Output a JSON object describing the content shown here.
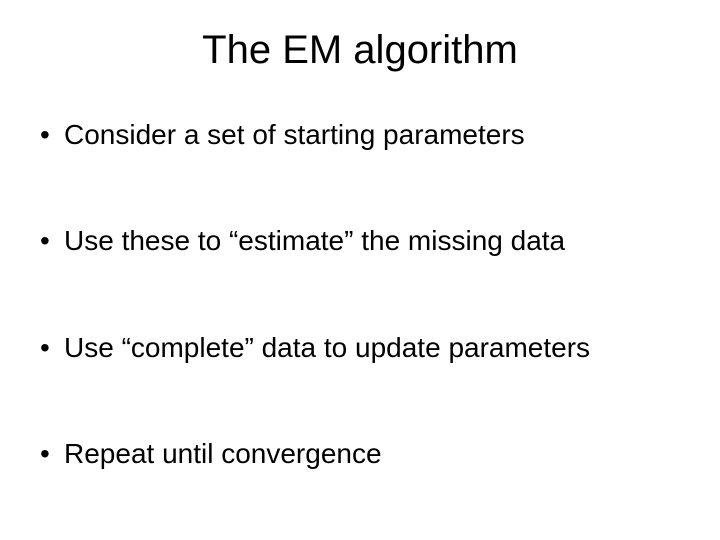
{
  "slide": {
    "title": "The EM algorithm",
    "title_fontsize": 40,
    "body_fontsize": 28,
    "text_color": "#000000",
    "background_color": "#ffffff",
    "bullets": [
      "Consider a set of starting parameters",
      "Use these to “estimate” the missing data",
      "Use “complete” data to update parameters",
      "Repeat until convergence"
    ]
  }
}
